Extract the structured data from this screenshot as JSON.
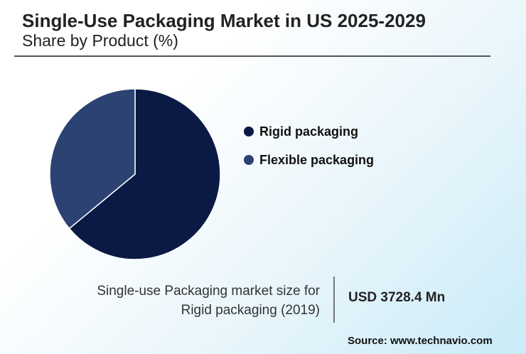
{
  "header": {
    "title": "Single-Use Packaging Market in US 2025-2029",
    "subtitle": "Share by Product (%)"
  },
  "chart_data": {
    "type": "pie",
    "categories": [
      "Rigid packaging",
      "Flexible packaging"
    ],
    "values": [
      64,
      36
    ],
    "colors": [
      "#0a1a45",
      "#2c4273"
    ],
    "legend_position": "right"
  },
  "footer": {
    "description_line1": "Single-use Packaging market size for",
    "description_line2": "Rigid packaging (2019)",
    "value": "USD 3728.4 Mn",
    "source": "Source: www.technavio.com"
  }
}
